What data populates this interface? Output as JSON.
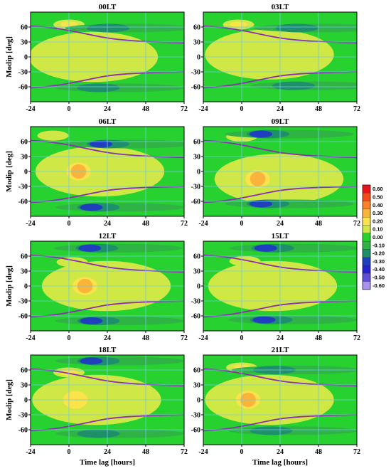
{
  "chart_data": {
    "type": "heatmap",
    "x_ticks": [
      -24,
      0,
      24,
      48,
      72
    ],
    "y_ticks": [
      60,
      30,
      0,
      -30,
      -60
    ],
    "xlim": [
      -24,
      72
    ],
    "ylim": [
      -90,
      90
    ],
    "ylabel": "Modip [deg]",
    "xlabel": "Time lag [hours]",
    "grid": true,
    "colorbar": {
      "labels": [
        "0.60",
        "0.50",
        "0.40",
        "0.30",
        "0.20",
        "0.10",
        "0.00",
        "-0.10",
        "-0.20",
        "-0.30",
        "-0.40",
        "-0.50",
        "-0.60"
      ],
      "colors": [
        "#e8141e",
        "#f04b18",
        "#f7822a",
        "#fbb43a",
        "#fbe34c",
        "#cfe845",
        "#27d12f",
        "#2fb344",
        "#1e8f6b",
        "#1f3fbf",
        "#2424cc",
        "#5e4ed8",
        "#a993ef"
      ]
    },
    "panels": [
      {
        "title": "00LT",
        "peak": {
          "x": 2,
          "y": 0,
          "v": 0.15
        },
        "north_band": {
          "x": 0,
          "y": 65,
          "v": 0.25
        },
        "neg_north": {
          "x": 20,
          "y": 58,
          "v": -0.25
        },
        "neg_south": {
          "x": 14,
          "y": -62,
          "v": -0.25
        }
      },
      {
        "title": "03LT",
        "peak": {
          "x": 4,
          "y": 5,
          "v": 0.15
        },
        "north_band": {
          "x": -2,
          "y": 65,
          "v": 0.25
        },
        "neg_north": {
          "x": 30,
          "y": 58,
          "v": -0.2
        },
        "neg_south": {
          "x": 28,
          "y": -58,
          "v": -0.25
        }
      },
      {
        "title": "06LT",
        "peak": {
          "x": 6,
          "y": 0,
          "v": 0.3
        },
        "north_band": {
          "x": -10,
          "y": 72,
          "v": 0.15
        },
        "neg_north": {
          "x": 20,
          "y": 55,
          "v": -0.3
        },
        "neg_south": {
          "x": 14,
          "y": -72,
          "v": -0.3
        }
      },
      {
        "title": "09LT",
        "peak": {
          "x": 10,
          "y": -15,
          "v": 0.3
        },
        "north_band": {
          "x": 0,
          "y": 70,
          "v": 0.1
        },
        "neg_north": {
          "x": 12,
          "y": 75,
          "v": -0.3
        },
        "neg_south": {
          "x": 12,
          "y": -65,
          "v": -0.3
        }
      },
      {
        "title": "12LT",
        "peak": {
          "x": 10,
          "y": 0,
          "v": 0.25
        },
        "north_band": {
          "x": 2,
          "y": 48,
          "v": 0.15
        },
        "neg_north": {
          "x": 13,
          "y": 76,
          "v": -0.35
        },
        "neg_south": {
          "x": 14,
          "y": -70,
          "v": -0.3
        }
      },
      {
        "title": "15LT",
        "peak": {
          "x": 6,
          "y": 0,
          "v": 0.15
        },
        "north_band": {
          "x": 2,
          "y": 50,
          "v": 0.15
        },
        "neg_north": {
          "x": 15,
          "y": 76,
          "v": -0.35
        },
        "neg_south": {
          "x": 14,
          "y": -68,
          "v": -0.3
        }
      },
      {
        "title": "18LT",
        "peak": {
          "x": 4,
          "y": 0,
          "v": 0.2
        },
        "north_band": {
          "x": 0,
          "y": 55,
          "v": 0.2
        },
        "neg_north": {
          "x": 14,
          "y": 78,
          "v": -0.3
        },
        "neg_south": {
          "x": 14,
          "y": -68,
          "v": -0.25
        }
      },
      {
        "title": "21LT",
        "peak": {
          "x": 4,
          "y": 0,
          "v": 0.25
        },
        "north_band": {
          "x": 0,
          "y": 65,
          "v": 0.2
        },
        "neg_north": {
          "x": 16,
          "y": 60,
          "v": -0.25
        },
        "neg_south": {
          "x": 14,
          "y": -62,
          "v": -0.25
        }
      }
    ]
  }
}
